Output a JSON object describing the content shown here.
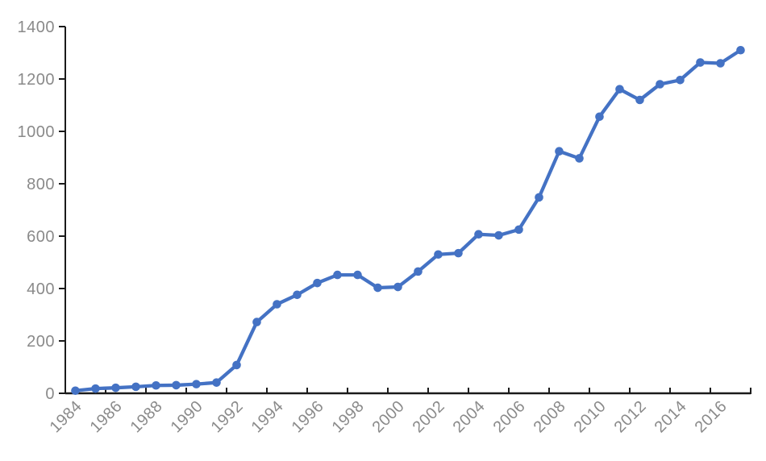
{
  "chart_data": {
    "type": "line",
    "title": "",
    "xlabel": "",
    "ylabel": "",
    "x": [
      1984,
      1985,
      1986,
      1987,
      1988,
      1989,
      1990,
      1991,
      1992,
      1993,
      1994,
      1995,
      1996,
      1997,
      1998,
      1999,
      2000,
      2001,
      2002,
      2003,
      2004,
      2005,
      2006,
      2007,
      2008,
      2009,
      2010,
      2011,
      2012,
      2013,
      2014,
      2015,
      2016,
      2017
    ],
    "values": [
      10,
      18,
      21,
      25,
      30,
      31,
      35,
      41,
      108,
      272,
      340,
      376,
      421,
      452,
      452,
      403,
      406,
      465,
      530,
      535,
      607,
      603,
      625,
      748,
      924,
      897,
      1056,
      1161,
      1120,
      1180,
      1196,
      1263,
      1260,
      1310
    ],
    "x_tick_labels": [
      "1984",
      "1986",
      "1988",
      "1990",
      "1992",
      "1994",
      "1996",
      "1998",
      "2000",
      "2002",
      "2004",
      "2006",
      "2008",
      "2010",
      "2012",
      "2014",
      "2016"
    ],
    "x_label_every": 2,
    "y_tick_labels": [
      "0",
      "200",
      "400",
      "600",
      "800",
      "1000",
      "1200",
      "1400"
    ],
    "yticks": [
      0,
      200,
      400,
      600,
      800,
      1000,
      1200,
      1400
    ],
    "ylim": [
      0,
      1400
    ],
    "grid": false,
    "legend": "none",
    "marker": "circle",
    "colors": {
      "line": "#4472C4",
      "marker": "#4472C4",
      "axis": "#1a1a1a",
      "tick_label": "#8a8a8a",
      "background": "#ffffff"
    }
  }
}
